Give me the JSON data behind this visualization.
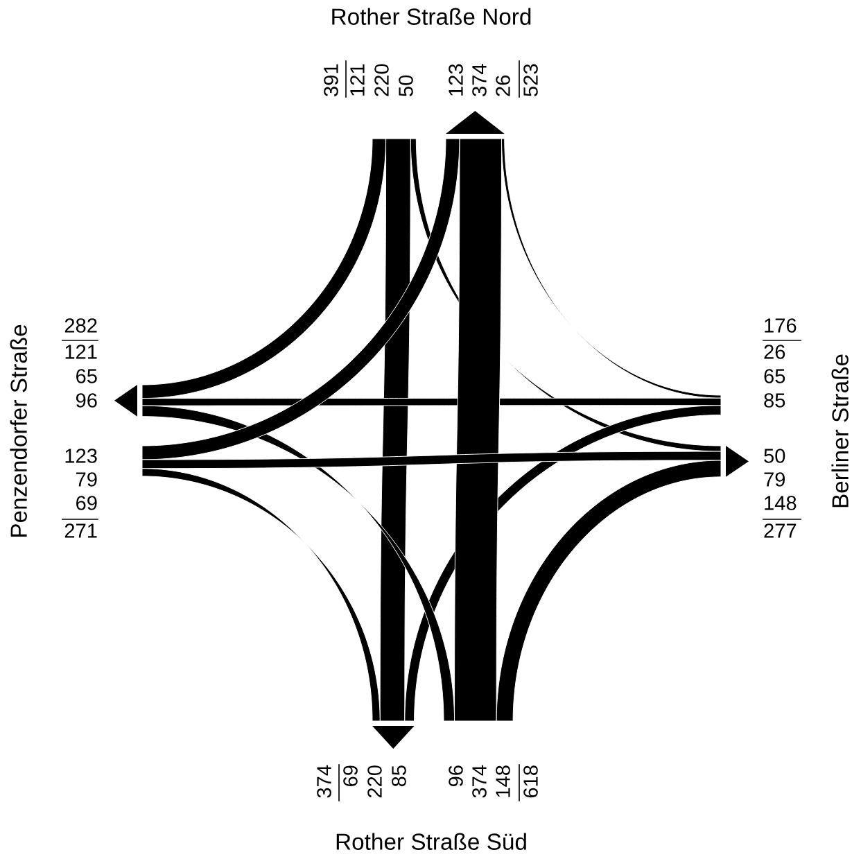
{
  "chart_data": {
    "type": "other",
    "categories": [
      "Rother Straße Nord",
      "Berliner Straße",
      "Rother Straße Süd",
      "Penzendorfer Straße"
    ],
    "series": [
      {
        "values": [
          null,
          50,
          220,
          121
        ]
      },
      {
        "values": [
          26,
          null,
          85,
          65
        ]
      },
      {
        "values": [
          374,
          148,
          null,
          96
        ]
      },
      {
        "values": [
          123,
          79,
          69,
          null
        ]
      }
    ],
    "annotations": [
      "121",
      "220",
      "50",
      "26",
      "65",
      "85",
      "96",
      "374",
      "148",
      "123",
      "79",
      "69"
    ],
    "data_labels": true,
    "totals": [
      [
        "391",
        "523"
      ],
      [
        "176",
        "277"
      ],
      [
        "618",
        "374"
      ],
      [
        "271",
        "282"
      ]
    ]
  }
}
